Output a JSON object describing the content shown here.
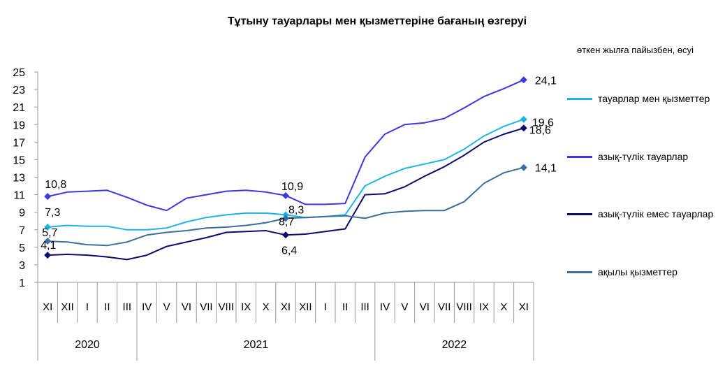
{
  "chart_data": {
    "type": "line",
    "title": "Тұтыну тауарлары мен қызметтеріне бағаның өзгеруі",
    "unit_note": "өткен жылға пайызбен, өсуі",
    "ylim": [
      1,
      25
    ],
    "yticks": [
      1,
      3,
      5,
      7,
      9,
      11,
      13,
      15,
      17,
      19,
      21,
      23,
      25
    ],
    "categories": [
      "XI",
      "XII",
      "I",
      "II",
      "III",
      "IV",
      "V",
      "VI",
      "VII",
      "VIII",
      "IX",
      "X",
      "XI",
      "XII",
      "I",
      "II",
      "III",
      "IV",
      "V",
      "VI",
      "VII",
      "VIII",
      "IX",
      "X",
      "XI"
    ],
    "years": [
      {
        "label": "2020",
        "from": 0,
        "to": 4
      },
      {
        "label": "2021",
        "from": 5,
        "to": 16
      },
      {
        "label": "2022",
        "from": 17,
        "to": 24
      }
    ],
    "grid": false,
    "legend_position": "right",
    "series": [
      {
        "name": "тауарлар мен қызметтер",
        "color": "#1FB4E6",
        "values": [
          7.3,
          7.5,
          7.4,
          7.4,
          7.0,
          7.0,
          7.2,
          7.9,
          8.4,
          8.7,
          8.9,
          8.9,
          8.7,
          8.4,
          8.5,
          8.7,
          12.0,
          13.1,
          14.0,
          14.5,
          15.0,
          16.2,
          17.7,
          18.8,
          19.6
        ],
        "labels": [
          {
            "index": 0,
            "text": "7,3"
          },
          {
            "index": 12,
            "text": "8,7"
          },
          {
            "index": 24,
            "text": "19,6"
          }
        ]
      },
      {
        "name": "азық-түлік тауарлар",
        "color": "#3A3AE0",
        "values": [
          10.8,
          11.3,
          11.4,
          11.5,
          10.7,
          9.8,
          9.2,
          10.6,
          11.0,
          11.4,
          11.5,
          11.3,
          10.9,
          9.9,
          9.9,
          10.0,
          15.3,
          17.9,
          19.0,
          19.2,
          19.7,
          20.9,
          22.2,
          23.1,
          24.1
        ],
        "labels": [
          {
            "index": 0,
            "text": "10,8"
          },
          {
            "index": 12,
            "text": "10,9"
          },
          {
            "index": 24,
            "text": "24,1"
          }
        ]
      },
      {
        "name": "азық-түлік емес тауарлар",
        "color": "#0B0B6E",
        "values": [
          4.1,
          4.2,
          4.1,
          3.9,
          3.6,
          4.1,
          5.1,
          5.6,
          6.1,
          6.7,
          6.8,
          6.9,
          6.4,
          6.5,
          6.8,
          7.1,
          11.0,
          11.1,
          11.9,
          13.1,
          14.2,
          15.5,
          17.0,
          17.9,
          18.6
        ],
        "labels": [
          {
            "index": 0,
            "text": "4,1"
          },
          {
            "index": 12,
            "text": "6,4"
          },
          {
            "index": 24,
            "text": "18,6"
          }
        ]
      },
      {
        "name": "ақылы қызметтер",
        "color": "#3B6E9E",
        "values": [
          5.7,
          5.6,
          5.3,
          5.2,
          5.6,
          6.4,
          6.7,
          6.9,
          7.2,
          7.3,
          7.5,
          7.8,
          8.3,
          8.4,
          8.5,
          8.6,
          8.3,
          8.9,
          9.1,
          9.2,
          9.2,
          10.2,
          12.3,
          13.5,
          14.1
        ],
        "labels": [
          {
            "index": 0,
            "text": "5,7"
          },
          {
            "index": 12,
            "text": "8,3"
          },
          {
            "index": 24,
            "text": "14,1"
          }
        ]
      }
    ]
  }
}
